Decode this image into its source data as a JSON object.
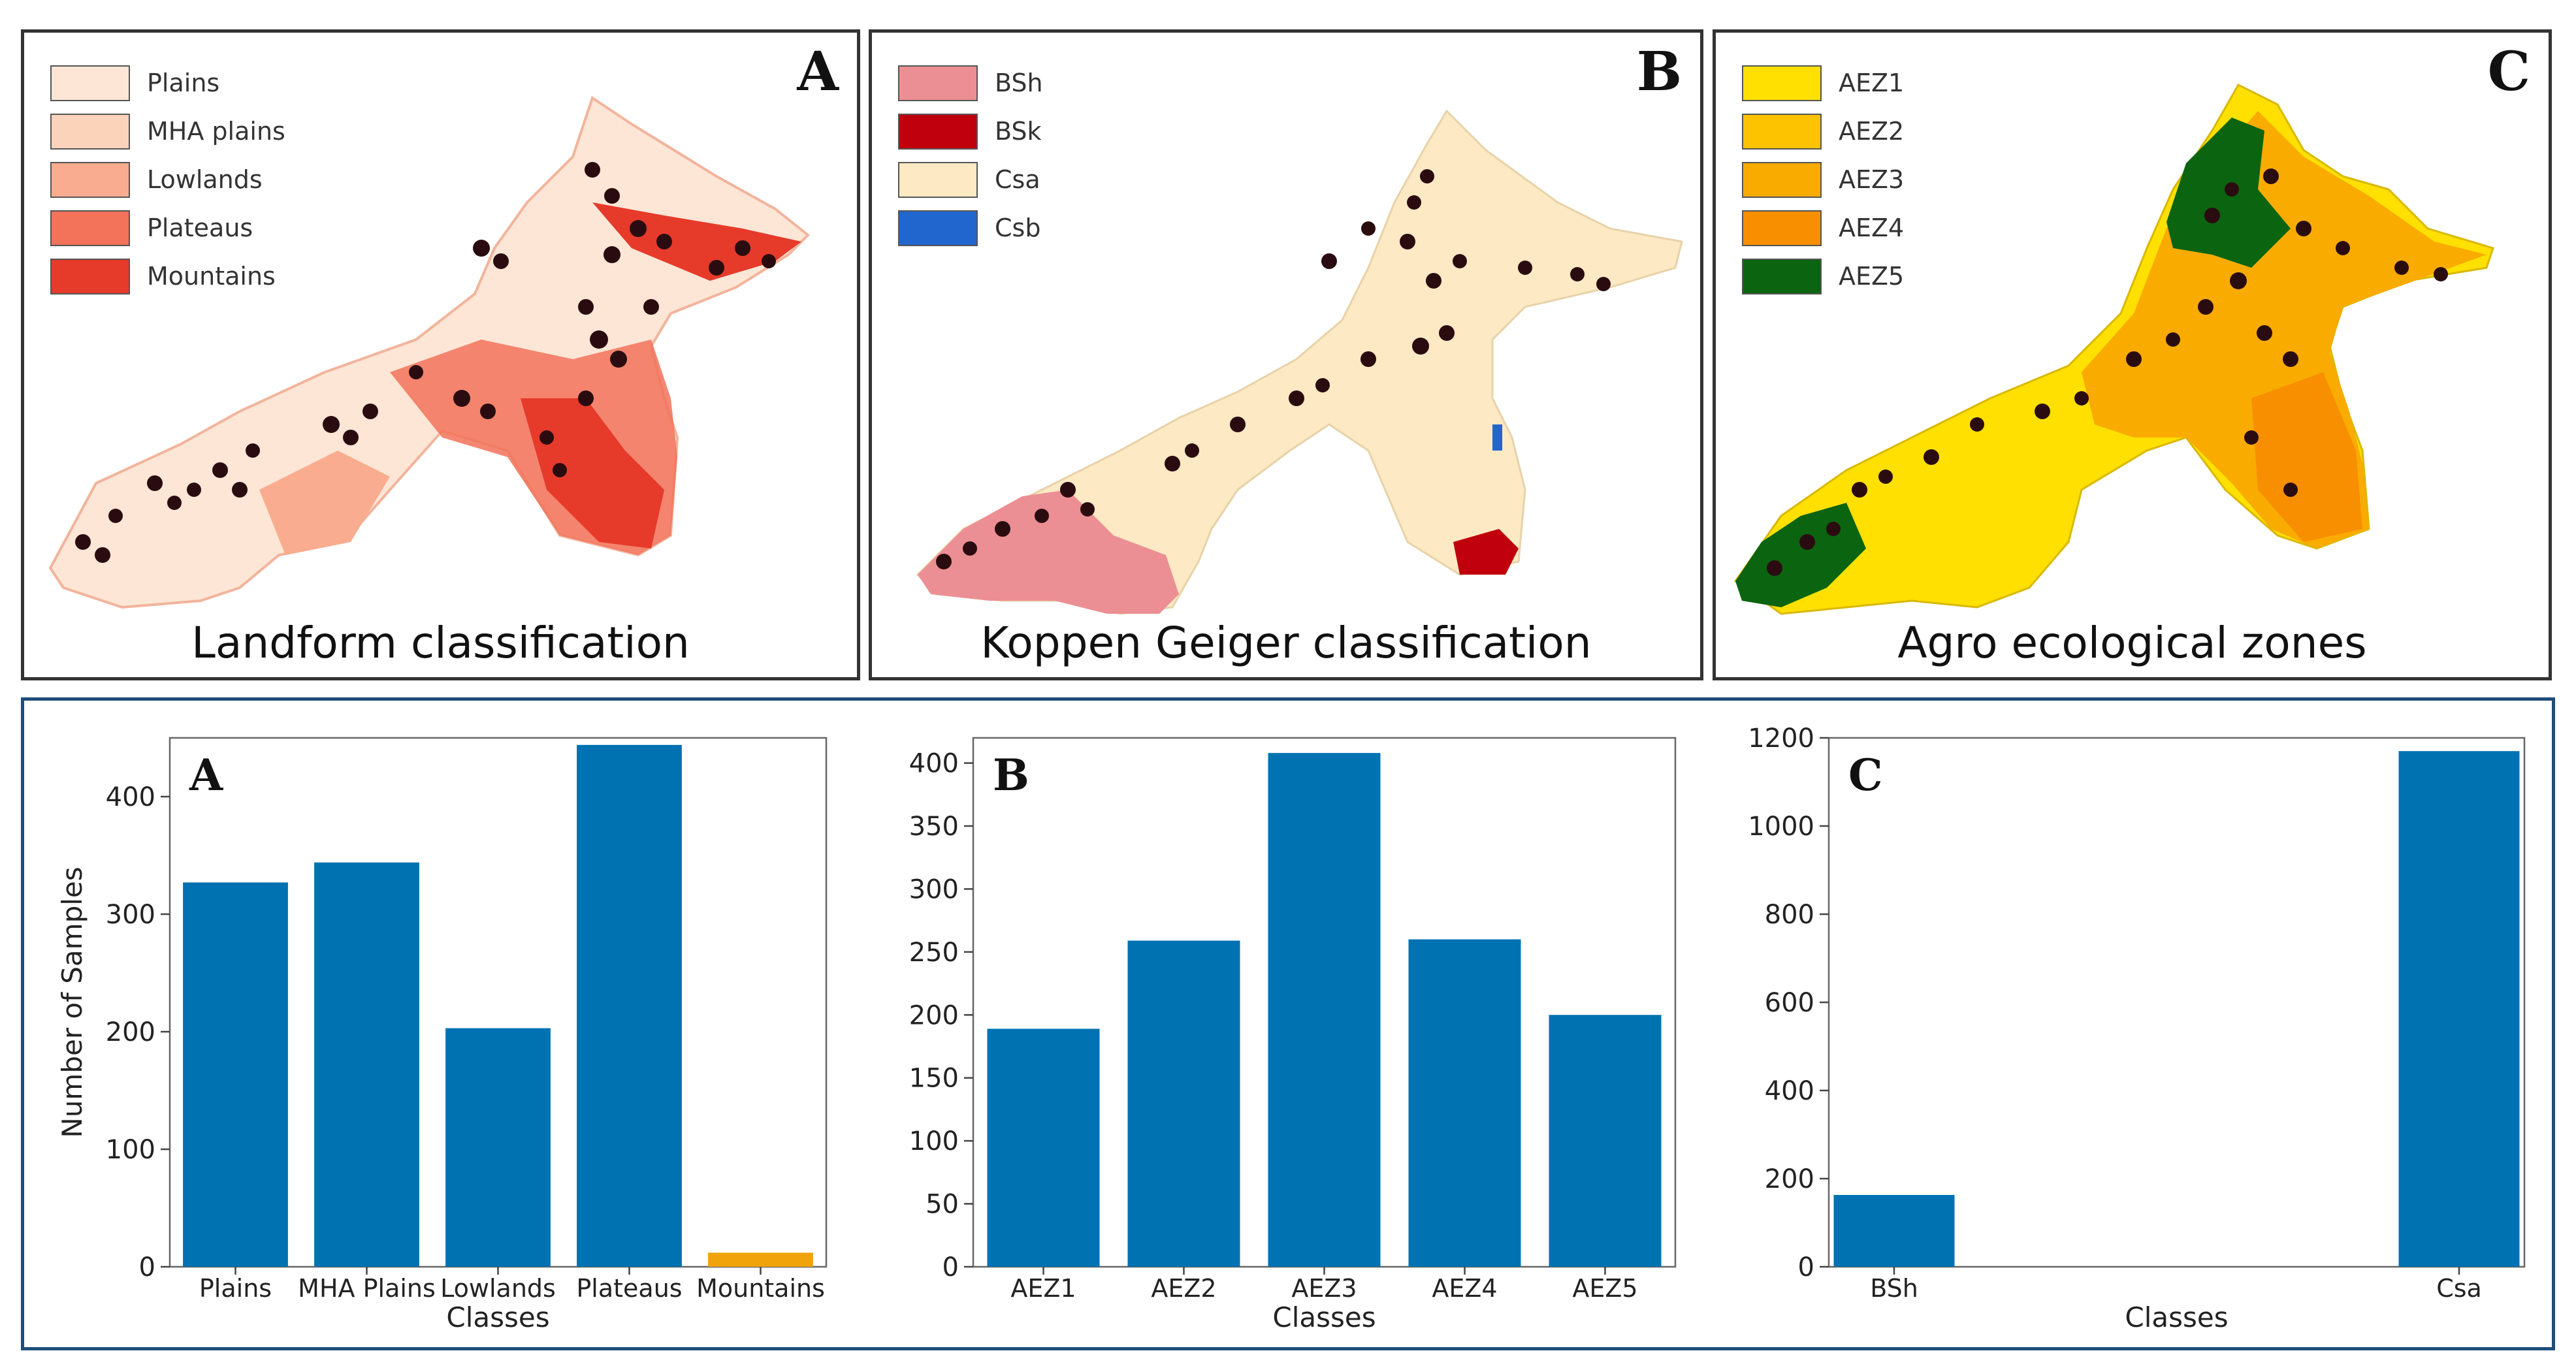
{
  "maps": [
    {
      "letter": "A",
      "caption": "Landform classification",
      "legend": [
        {
          "label": "Plains",
          "color": "#fde6d6"
        },
        {
          "label": "MHA plains",
          "color": "#fbd3bb"
        },
        {
          "label": "Lowlands",
          "color": "#f9ac8f"
        },
        {
          "label": "Plateaus",
          "color": "#f2725a"
        },
        {
          "label": "Mountains",
          "color": "#e63a2b"
        }
      ]
    },
    {
      "letter": "B",
      "caption": "Koppen Geiger  classification",
      "legend": [
        {
          "label": "BSh",
          "color": "#ec8f94"
        },
        {
          "label": "BSk",
          "color": "#c0000c"
        },
        {
          "label": "Csa",
          "color": "#fde9c4"
        },
        {
          "label": "Csb",
          "color": "#2166cf"
        }
      ]
    },
    {
      "letter": "C",
      "caption": "Agro ecological zones",
      "legend": [
        {
          "label": "AEZ1",
          "color": "#ffe000"
        },
        {
          "label": "AEZ2",
          "color": "#fdc300"
        },
        {
          "label": "AEZ3",
          "color": "#f9ab00"
        },
        {
          "label": "AEZ4",
          "color": "#f78f00"
        },
        {
          "label": "AEZ5",
          "color": "#0b6410"
        }
      ]
    }
  ],
  "chart_data": [
    {
      "type": "bar",
      "panel_letter": "A",
      "categories": [
        "Plains",
        "MHA Plains",
        "Lowlands",
        "Plateaus",
        "Mountains"
      ],
      "values": [
        327,
        344,
        203,
        444,
        12
      ],
      "bar_colors": [
        "#0072b2",
        "#0072b2",
        "#0072b2",
        "#0072b2",
        "#f0a30a"
      ],
      "title": "",
      "xlabel": "Classes",
      "ylabel": "Number of Samples",
      "ylim": [
        0,
        450
      ],
      "yticks": [
        0,
        100,
        200,
        300,
        400
      ]
    },
    {
      "type": "bar",
      "panel_letter": "B",
      "categories": [
        "AEZ1",
        "AEZ2",
        "AEZ3",
        "AEZ4",
        "AEZ5"
      ],
      "values": [
        189,
        259,
        408,
        260,
        200
      ],
      "bar_colors": [
        "#0072b2",
        "#0072b2",
        "#0072b2",
        "#0072b2",
        "#0072b2"
      ],
      "title": "",
      "xlabel": "Classes",
      "ylabel": "",
      "ylim": [
        0,
        420
      ],
      "yticks": [
        0,
        50,
        100,
        150,
        200,
        250,
        300,
        350,
        400
      ]
    },
    {
      "type": "bar",
      "panel_letter": "C",
      "categories": [
        "BSh",
        "Csa"
      ],
      "values": [
        163,
        1170
      ],
      "bar_colors": [
        "#0072b2",
        "#0072b2"
      ],
      "title": "",
      "xlabel": "Classes",
      "ylabel": "",
      "ylim": [
        0,
        1200
      ],
      "yticks": [
        0,
        200,
        400,
        600,
        800,
        1000,
        1200
      ]
    }
  ]
}
